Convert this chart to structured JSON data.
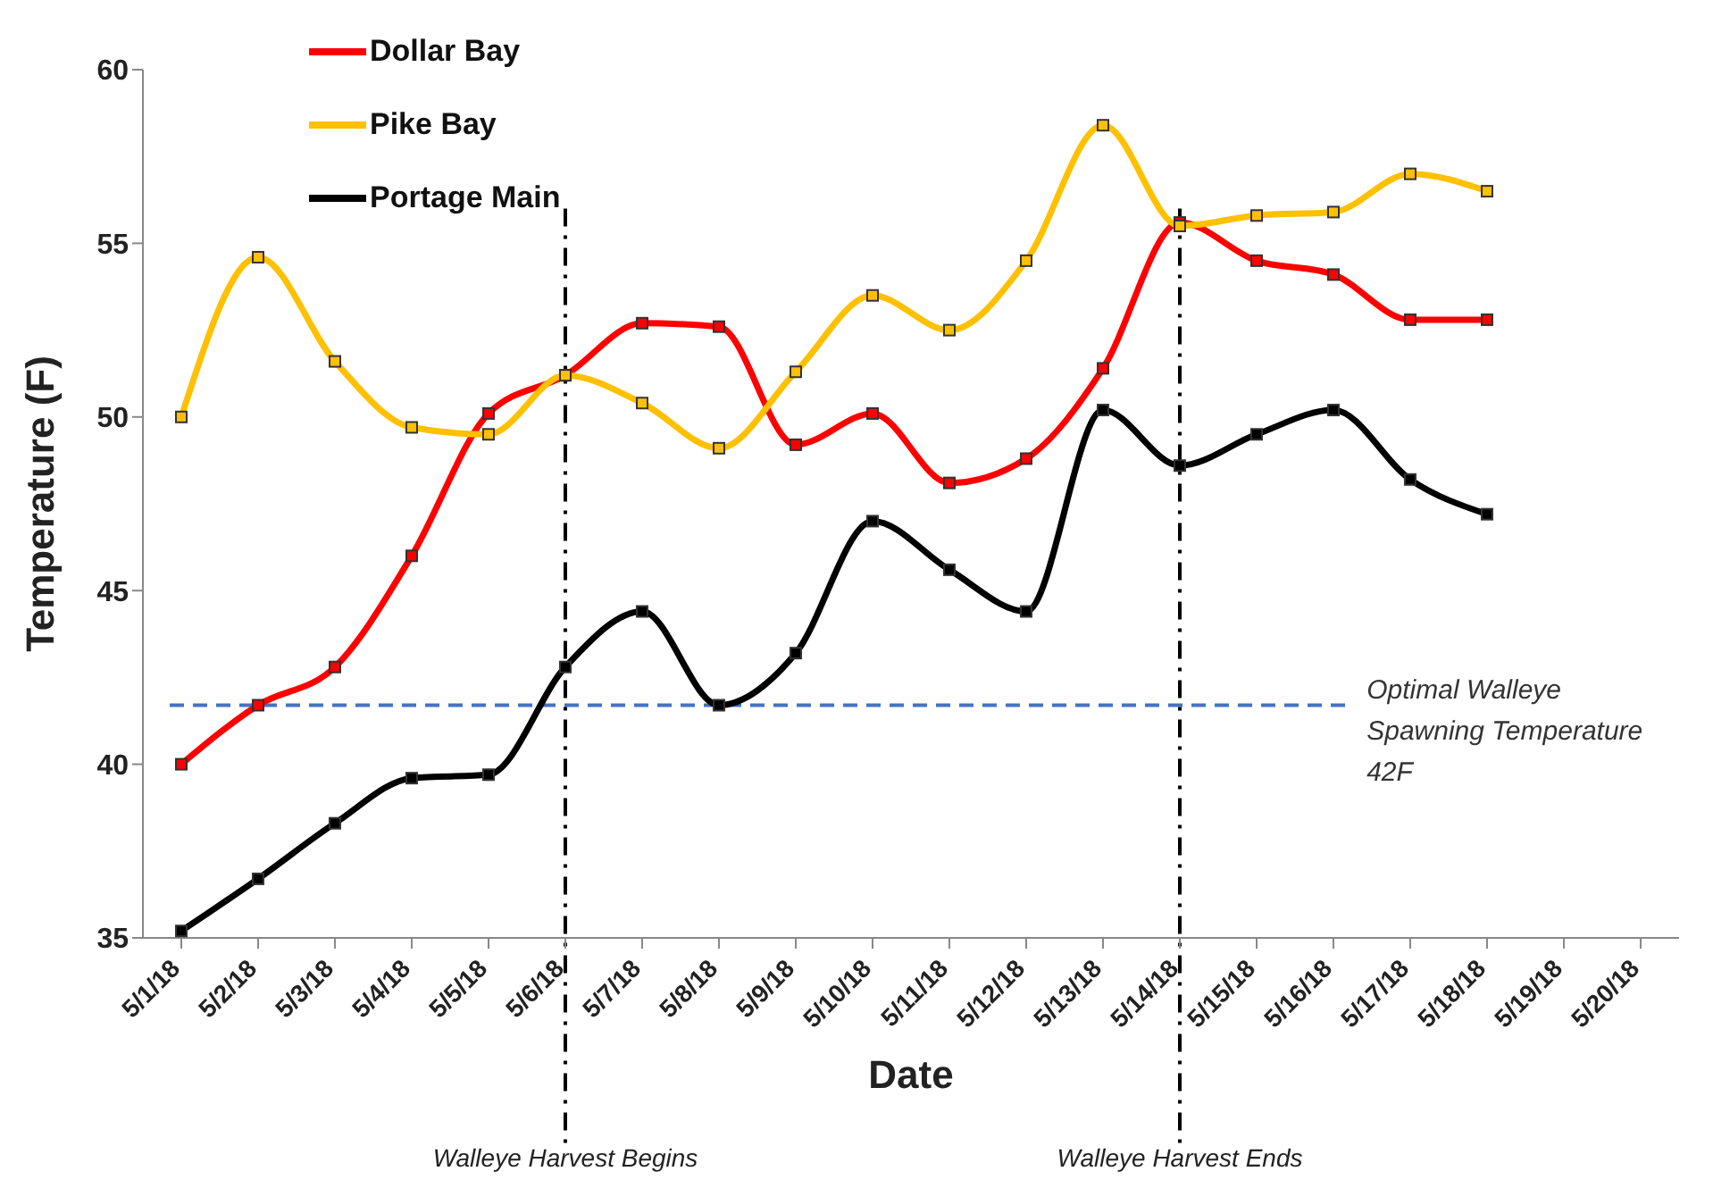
{
  "chart_data": {
    "type": "line",
    "xlabel": "Date",
    "ylabel": "Temperature (F)",
    "categories": [
      "5/1/18",
      "5/2/18",
      "5/3/18",
      "5/4/18",
      "5/5/18",
      "5/6/18",
      "5/7/18",
      "5/8/18",
      "5/9/18",
      "5/10/18",
      "5/11/18",
      "5/12/18",
      "5/13/18",
      "5/14/18",
      "5/15/18",
      "5/16/18",
      "5/17/18",
      "5/18/18",
      "5/19/18",
      "5/20/18"
    ],
    "series": [
      {
        "name": "Dollar Bay",
        "color": "#ff0000",
        "values": [
          40.0,
          41.7,
          42.8,
          46.0,
          50.1,
          51.2,
          52.7,
          52.6,
          49.2,
          50.1,
          48.1,
          48.8,
          51.4,
          55.6,
          54.5,
          54.1,
          52.8,
          52.8,
          null,
          null
        ]
      },
      {
        "name": "Pike Bay",
        "color": "#ffc000",
        "values": [
          50.0,
          54.6,
          51.6,
          49.7,
          49.5,
          51.2,
          50.4,
          49.1,
          51.3,
          53.5,
          52.5,
          54.5,
          58.4,
          55.5,
          55.8,
          55.9,
          57.0,
          56.5,
          null,
          null
        ]
      },
      {
        "name": "Portage Main",
        "color": "#000000",
        "values": [
          35.2,
          36.7,
          38.3,
          39.6,
          39.7,
          42.8,
          44.4,
          41.7,
          43.2,
          47.0,
          45.6,
          44.4,
          50.2,
          48.6,
          49.5,
          50.2,
          48.2,
          47.2,
          null,
          null
        ]
      }
    ],
    "ylim": [
      35,
      60
    ],
    "yticks": [
      35,
      40,
      45,
      50,
      55,
      60
    ],
    "grid": false,
    "legend": "top left",
    "marker": "square",
    "line_style": "solid",
    "ref_lines": [
      {
        "axis": "y",
        "value": 41.7,
        "label": "Optimal Walleye Spawning Temperature 42F",
        "color": "#4472c4",
        "line_style": "dashed"
      },
      {
        "axis": "x",
        "value": "5/6/18",
        "label": "Walleye Harvest Begins",
        "color": "#000000",
        "line_style": "dashdot"
      },
      {
        "axis": "x",
        "value": "5/14/18",
        "label": "Walleye Harvest Ends",
        "color": "#000000",
        "line_style": "dashdot"
      }
    ]
  }
}
